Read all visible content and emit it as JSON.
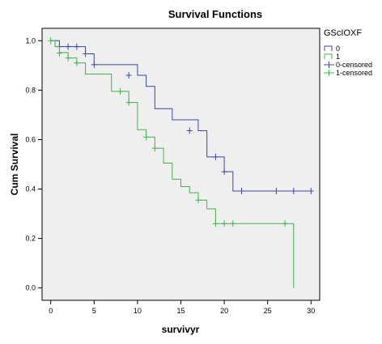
{
  "chart_data": {
    "type": "line",
    "title": "Survival Functions",
    "xlabel": "survivyr",
    "ylabel": "Cum Survival",
    "xlim": [
      -1,
      31
    ],
    "ylim": [
      -0.05,
      1.05
    ],
    "xticks": [
      "0",
      "5",
      "10",
      "15",
      "20",
      "25",
      "30"
    ],
    "yticks": [
      "0.0",
      "0.2",
      "0.4",
      "0.6",
      "0.8",
      "1.0"
    ],
    "grid": false,
    "legend_title": "GScIOXF",
    "legend_position": "top-right",
    "series": [
      {
        "name": "0",
        "color": "#3b47a8",
        "steps": [
          [
            0,
            1.0
          ],
          [
            1,
            0.976
          ],
          [
            4,
            0.947
          ],
          [
            5,
            0.903
          ],
          [
            9,
            0.903
          ],
          [
            10,
            0.86
          ],
          [
            11,
            0.815
          ],
          [
            12,
            0.725
          ],
          [
            14,
            0.68
          ],
          [
            16,
            0.68
          ],
          [
            17,
            0.636
          ],
          [
            18,
            0.53
          ],
          [
            20,
            0.47
          ],
          [
            21,
            0.392
          ],
          [
            30,
            0.392
          ]
        ],
        "censored": [
          [
            1,
            0.976
          ],
          [
            2,
            0.976
          ],
          [
            3,
            0.976
          ],
          [
            4,
            0.947
          ],
          [
            5,
            0.903
          ],
          [
            9,
            0.86
          ],
          [
            16,
            0.636
          ],
          [
            19,
            0.53
          ],
          [
            20,
            0.47
          ],
          [
            22,
            0.392
          ],
          [
            26,
            0.392
          ],
          [
            28,
            0.392
          ],
          [
            30,
            0.392
          ]
        ]
      },
      {
        "name": "1",
        "color": "#3fb34a",
        "steps": [
          [
            0,
            1.0
          ],
          [
            0.5,
            0.976
          ],
          [
            1,
            0.952
          ],
          [
            2,
            0.93
          ],
          [
            3,
            0.91
          ],
          [
            4,
            0.865
          ],
          [
            7,
            0.795
          ],
          [
            9,
            0.75
          ],
          [
            10,
            0.64
          ],
          [
            11,
            0.61
          ],
          [
            12,
            0.565
          ],
          [
            13,
            0.505
          ],
          [
            14,
            0.44
          ],
          [
            15,
            0.41
          ],
          [
            16,
            0.385
          ],
          [
            17,
            0.355
          ],
          [
            18,
            0.32
          ],
          [
            19,
            0.26
          ],
          [
            28,
            0.26
          ],
          [
            28,
            0.0
          ]
        ],
        "censored": [
          [
            0,
            1.0
          ],
          [
            1,
            0.95
          ],
          [
            2,
            0.93
          ],
          [
            3,
            0.91
          ],
          [
            8,
            0.795
          ],
          [
            9,
            0.75
          ],
          [
            11,
            0.61
          ],
          [
            12,
            0.565
          ],
          [
            17,
            0.355
          ],
          [
            19,
            0.26
          ],
          [
            20,
            0.26
          ],
          [
            21,
            0.26
          ],
          [
            27,
            0.26
          ]
        ]
      }
    ],
    "legend": [
      {
        "label": "0",
        "color": "#3b47a8",
        "kind": "line"
      },
      {
        "label": "1",
        "color": "#3fb34a",
        "kind": "line"
      },
      {
        "label": "0-censored",
        "color": "#3b47a8",
        "kind": "cross"
      },
      {
        "label": "1-censored",
        "color": "#3fb34a",
        "kind": "cross"
      }
    ]
  }
}
